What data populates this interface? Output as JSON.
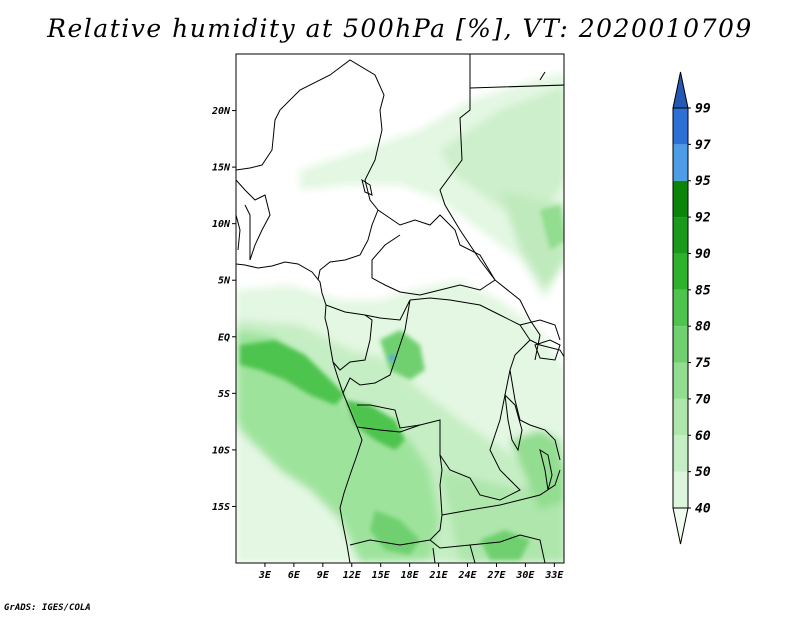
{
  "title": "Relative humidity at 500hPa [%], VT: 2020010709",
  "footer": "GrADS: IGES/COLA",
  "map": {
    "lon_range": [
      0,
      34
    ],
    "lat_range": [
      -20,
      25
    ],
    "lat_ticks": [
      "20N",
      "15N",
      "10N",
      "5N",
      "EQ",
      "5S",
      "10S",
      "15S"
    ],
    "lon_ticks": [
      "3E",
      "6E",
      "9E",
      "12E",
      "15E",
      "18E",
      "21E",
      "24E",
      "27E",
      "30E",
      "33E"
    ]
  },
  "colorbar": {
    "levels": [
      "40",
      "50",
      "60",
      "70",
      "75",
      "80",
      "85",
      "90",
      "92",
      "95",
      "97",
      "99"
    ],
    "colors": [
      "#f0fcf0",
      "#dcf5dc",
      "#c6eec4",
      "#aee6ac",
      "#92dd90",
      "#70d06f",
      "#4ec44e",
      "#2eb22e",
      "#1a9a1a",
      "#0a850a",
      "#4c9ce6",
      "#2c6fd6",
      "#2458b4"
    ]
  },
  "chart_data": {
    "type": "heatmap",
    "title": "Relative humidity at 500hPa [%], VT: 2020010709",
    "variable": "Relative humidity",
    "units": "%",
    "level": "500hPa",
    "valid_time": "2020010709",
    "contour_levels": [
      40,
      50,
      60,
      70,
      75,
      80,
      85,
      90,
      92,
      95,
      97,
      99
    ]
  }
}
